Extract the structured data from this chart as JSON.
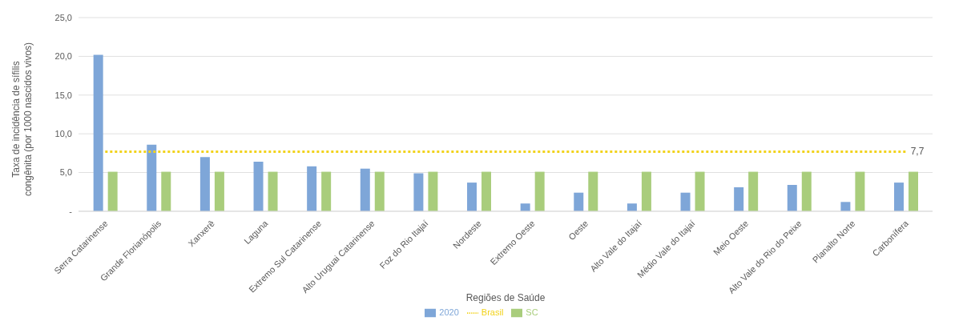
{
  "chart_data": {
    "type": "bar",
    "xlabel": "Regiões de Saúde",
    "ylabel": "Taxa de incidência de sífilis congênita (por 1000 nascidos vivos)",
    "categories": [
      "Serra Catarinense",
      "Grande Florianópolis",
      "Xanxerê",
      "Laguna",
      "Extremo Sul Catarinense",
      "Alto Uruguai Catarinense",
      "Foz do Rio Itajaí",
      "Nordeste",
      "Extremo Oeste",
      "Oeste",
      "Alto Vale do Itajaí",
      "Médio Vale do Itajaí",
      "Meio Oeste",
      "Alto Vale do Rio do Peixe",
      "Planalto Norte",
      "Carbonífera"
    ],
    "series": [
      {
        "name": "2020",
        "color": "#7ea6d8",
        "values": [
          20.2,
          8.6,
          7.0,
          6.4,
          5.8,
          5.5,
          4.9,
          3.7,
          1.0,
          2.4,
          1.0,
          2.4,
          3.1,
          3.4,
          1.2,
          3.7
        ]
      },
      {
        "name": "SC",
        "color": "#a9cd7c",
        "values": [
          5.1,
          5.1,
          5.1,
          5.1,
          5.1,
          5.1,
          5.1,
          5.1,
          5.1,
          5.1,
          5.1,
          5.1,
          5.1,
          5.1,
          5.1,
          5.1
        ]
      },
      {
        "name": "Brasil",
        "type": "line",
        "color": "#f2d21b",
        "line_style": "dotted",
        "marker": "none",
        "values": [
          7.7,
          7.7,
          7.7,
          7.7,
          7.7,
          7.7,
          7.7,
          7.7,
          7.7,
          7.7,
          7.7,
          7.7,
          7.7,
          7.7,
          7.7,
          7.7
        ],
        "value_labels": [
          null,
          null,
          null,
          null,
          null,
          null,
          null,
          null,
          null,
          null,
          null,
          null,
          null,
          null,
          null,
          "7,7"
        ]
      }
    ],
    "ylim": [
      0,
      25
    ],
    "yticks": [
      {
        "value": 0,
        "label": "-"
      },
      {
        "value": 5,
        "label": "5,0"
      },
      {
        "value": 10,
        "label": "10,0"
      },
      {
        "value": 15,
        "label": "15,0"
      },
      {
        "value": 20,
        "label": "20,0"
      },
      {
        "value": 25,
        "label": "25,0"
      }
    ],
    "grid": "y",
    "legend": "bottom"
  }
}
